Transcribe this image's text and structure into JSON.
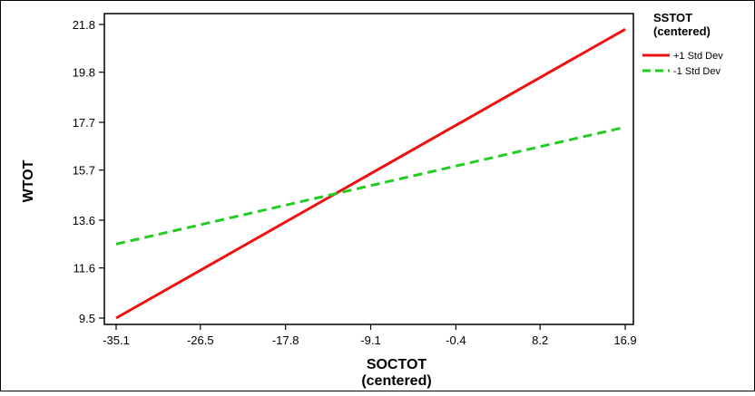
{
  "chart_data": {
    "type": "line",
    "title": "",
    "xlabel": [
      "SOCTOT",
      "(centered)"
    ],
    "ylabel": "WTOT",
    "xlim": [
      -35.1,
      16.9
    ],
    "ylim": [
      9.5,
      21.8
    ],
    "x_ticks": [
      "-35.1",
      "-26.5",
      "-17.8",
      "-9.1",
      "-0.4",
      "8.2",
      "16.9"
    ],
    "y_ticks": [
      "9.5",
      "11.6",
      "13.6",
      "15.7",
      "17.7",
      "19.8",
      "21.8"
    ],
    "grid": false,
    "legend": {
      "title": [
        "SSTOT",
        "(centered)"
      ],
      "placement": "right"
    },
    "series": [
      {
        "name": "+1 Std Dev",
        "x": [
          -35.1,
          16.9
        ],
        "y": [
          9.5,
          21.6
        ],
        "color": "#ee1111",
        "style": "solid"
      },
      {
        "name": "-1 Std Dev",
        "x": [
          -35.1,
          16.9
        ],
        "y": [
          12.6,
          17.5
        ],
        "color": "#22cc22",
        "style": "dashed"
      }
    ]
  }
}
